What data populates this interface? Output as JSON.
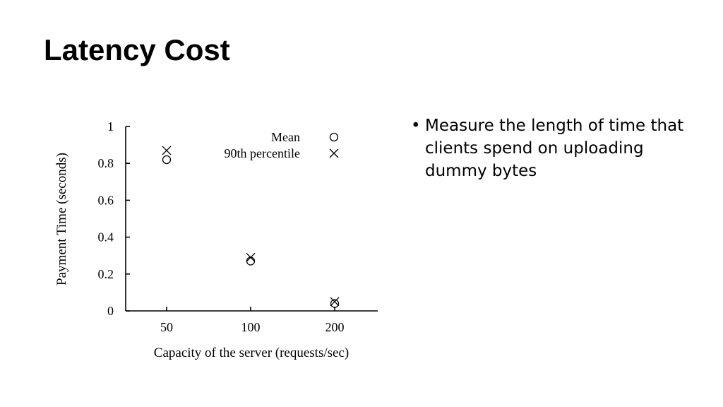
{
  "title": "Latency Cost",
  "bullets": [
    "Measure the length of time that clients spend on uploading dummy bytes"
  ],
  "chart_data": {
    "type": "scatter",
    "xlabel": "Capacity of the server (requests/sec)",
    "ylabel": "Payment Time (seconds)",
    "categories": [
      "50",
      "100",
      "200"
    ],
    "ylim": [
      0,
      1
    ],
    "yticks": [
      "0",
      "0.2",
      "0.4",
      "0.6",
      "0.8",
      "1"
    ],
    "legend_position": "top-right",
    "grid": false,
    "series": [
      {
        "name": "Mean",
        "marker": "circle",
        "values": [
          0.82,
          0.27,
          0.04
        ]
      },
      {
        "name": "90th percentile",
        "marker": "x",
        "values": [
          0.87,
          0.29,
          0.05
        ]
      }
    ]
  }
}
